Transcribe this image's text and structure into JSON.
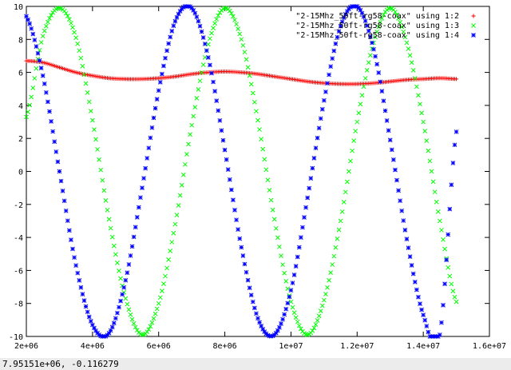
{
  "status": {
    "coordinates": "7.95151e+06, -0.116279"
  },
  "chart_data": {
    "type": "scatter",
    "title": "",
    "xlabel": "",
    "ylabel": "",
    "xlim": [
      2000000,
      16000000
    ],
    "ylim": [
      -10,
      10
    ],
    "x_ticks": [
      "2e+06",
      "4e+06",
      "6e+06",
      "8e+06",
      "1e+07",
      "1.2e+07",
      "1.4e+07",
      "1.6e+07"
    ],
    "y_ticks": [
      "10",
      "8",
      "6",
      "4",
      "2",
      "0",
      "-2",
      "-4",
      "-6",
      "-8",
      "-10"
    ],
    "grid": false,
    "legend_position": "top-right",
    "series": [
      {
        "name": "\"2-15Mhz_50ft-rg58-coax\" using 1:2",
        "marker": "+",
        "color": "#ff0000",
        "x": [
          2000000,
          2500000,
          3000000,
          3500000,
          4000000,
          4500000,
          5000000,
          5500000,
          6000000,
          6500000,
          7000000,
          7500000,
          8000000,
          8500000,
          9000000,
          9500000,
          10000000,
          10500000,
          11000000,
          11500000,
          12000000,
          12500000,
          13000000,
          13500000,
          14000000,
          14500000,
          15000000
        ],
        "y": [
          6.7,
          6.6,
          6.3,
          6.0,
          5.8,
          5.65,
          5.6,
          5.6,
          5.65,
          5.75,
          5.9,
          6.0,
          6.05,
          6.0,
          5.9,
          5.75,
          5.6,
          5.45,
          5.35,
          5.3,
          5.3,
          5.35,
          5.45,
          5.55,
          5.6,
          5.65,
          5.6
        ]
      },
      {
        "name": "\"2-15Mhz_50ft-rg58-coax\" using 1:3",
        "marker": "x",
        "color": "#00ff00",
        "x": [
          2000000,
          2500000,
          3000000,
          3500000,
          4000000,
          4500000,
          5000000,
          5500000,
          6000000,
          6500000,
          7000000,
          7500000,
          8000000,
          8500000,
          9000000,
          9500000,
          10000000,
          10500000,
          11000000,
          11500000,
          12000000,
          12500000,
          13000000,
          13500000,
          14000000,
          14500000,
          15000000
        ],
        "y": [
          3.3,
          8.2,
          9.9,
          8.1,
          3.1,
          -2.9,
          -7.7,
          -9.9,
          -8.0,
          -3.2,
          2.8,
          7.7,
          9.9,
          8.0,
          3.1,
          -2.9,
          -7.9,
          -9.9,
          -7.8,
          -3.0,
          3.0,
          7.8,
          9.9,
          7.8,
          3.0,
          -3.0,
          -7.9
        ]
      },
      {
        "name": "\"2-15Mhz_50ft-rg58-coax\" using 1:4",
        "marker": "*",
        "color": "#0000ff",
        "x": [
          2000000,
          2500000,
          3000000,
          3500000,
          4000000,
          4500000,
          5000000,
          5500000,
          6000000,
          6500000,
          7000000,
          7500000,
          8000000,
          8500000,
          9000000,
          9500000,
          10000000,
          10500000,
          11000000,
          11500000,
          12000000,
          12500000,
          13000000,
          13500000,
          14000000,
          14500000,
          15000000
        ],
        "y": [
          9.4,
          5.8,
          0.0,
          -5.7,
          -9.3,
          -9.8,
          -6.6,
          -1.0,
          4.9,
          9.1,
          9.9,
          6.9,
          1.3,
          -4.6,
          -8.9,
          -9.9,
          -7.2,
          -1.6,
          4.3,
          8.8,
          10.0,
          7.4,
          1.9,
          -4.1,
          -8.7,
          -9.9,
          2.4
        ]
      }
    ]
  }
}
